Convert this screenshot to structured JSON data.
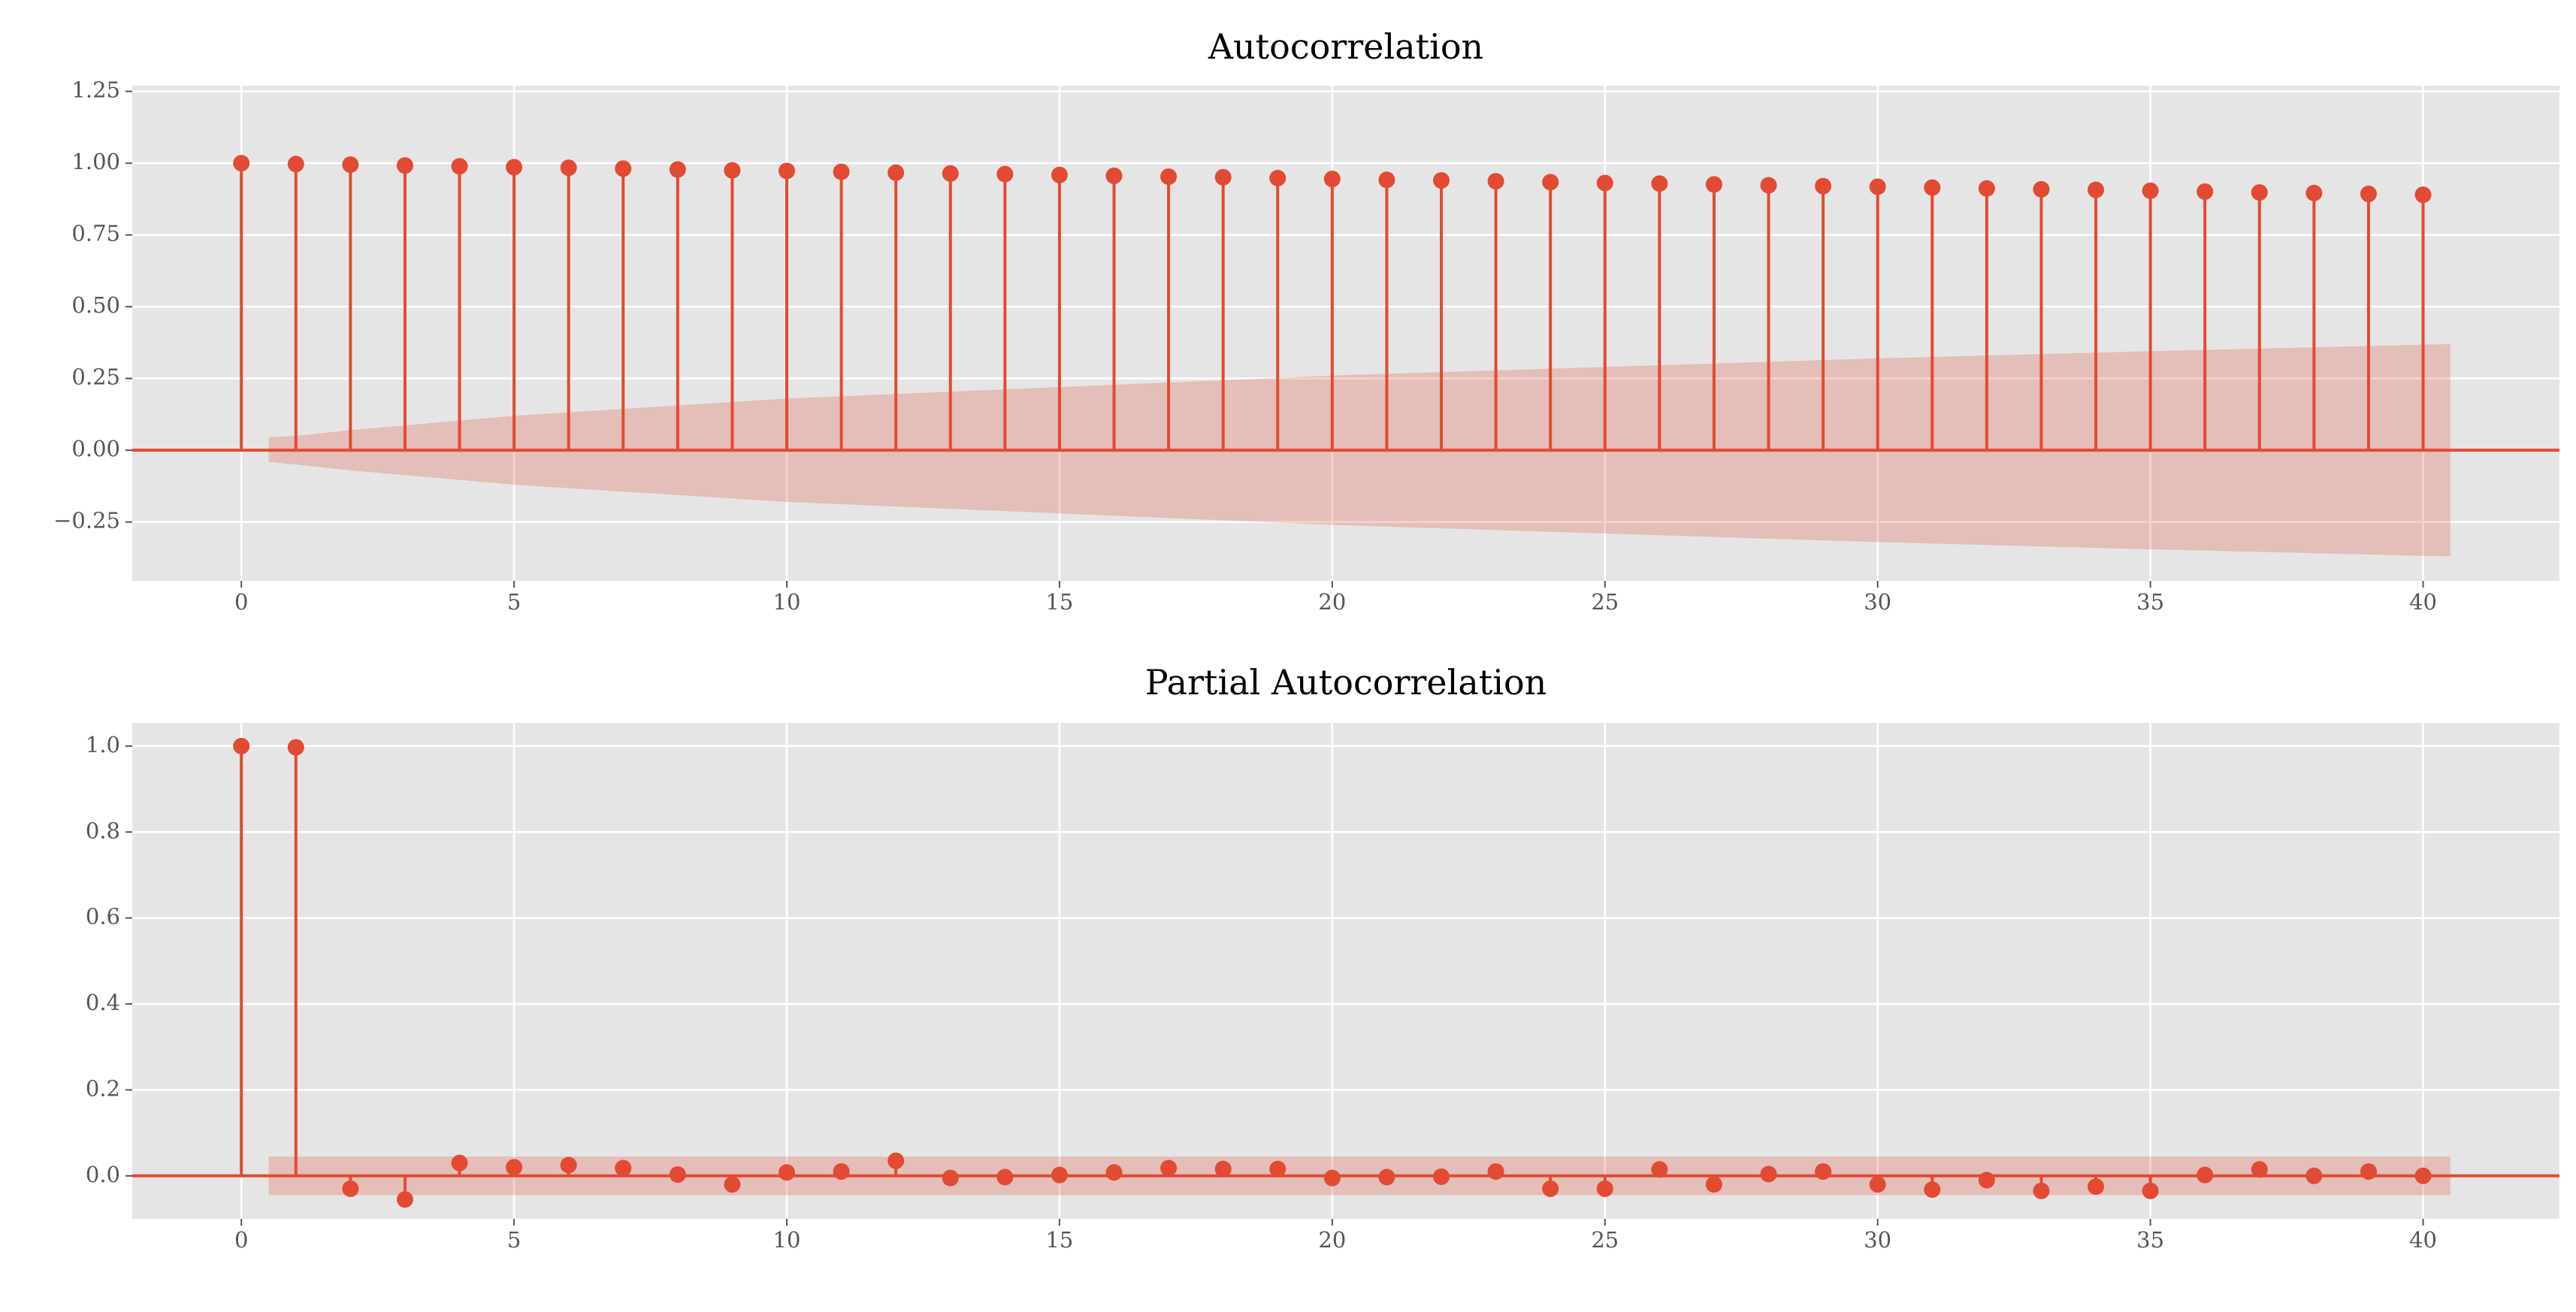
{
  "chart_data": [
    {
      "type": "stem",
      "title": "Autocorrelation",
      "color": "#E24A33",
      "band_color": "#E24A33",
      "grid": true,
      "x": [
        0,
        1,
        2,
        3,
        4,
        5,
        6,
        7,
        8,
        9,
        10,
        11,
        12,
        13,
        14,
        15,
        16,
        17,
        18,
        19,
        20,
        21,
        22,
        23,
        24,
        25,
        26,
        27,
        28,
        29,
        30,
        31,
        32,
        33,
        34,
        35,
        36,
        37,
        38,
        39,
        40
      ],
      "values": [
        1,
        0.997,
        0.995,
        0.992,
        0.989,
        0.986,
        0.984,
        0.981,
        0.978,
        0.975,
        0.973,
        0.97,
        0.967,
        0.964,
        0.962,
        0.959,
        0.956,
        0.953,
        0.951,
        0.948,
        0.945,
        0.942,
        0.94,
        0.937,
        0.934,
        0.931,
        0.929,
        0.926,
        0.923,
        0.92,
        0.918,
        0.915,
        0.912,
        0.909,
        0.907,
        0.904,
        0.901,
        0.898,
        0.896,
        0.893,
        0.89
      ],
      "band": {
        "x": [
          0.5,
          1,
          2,
          5,
          10,
          15,
          20,
          25,
          30,
          35,
          40.5
        ],
        "upper": [
          0.045,
          0.05,
          0.07,
          0.12,
          0.18,
          0.22,
          0.26,
          0.29,
          0.32,
          0.345,
          0.37
        ],
        "lower": [
          -0.04,
          -0.05,
          -0.07,
          -0.12,
          -0.18,
          -0.22,
          -0.26,
          -0.29,
          -0.32,
          -0.345,
          -0.37
        ]
      },
      "xlim": [
        -2,
        42.5
      ],
      "ylim": [
        -0.455,
        1.27
      ],
      "xticks": [
        0,
        5,
        10,
        15,
        20,
        25,
        30,
        35,
        40
      ],
      "yticks": [
        {
          "value": 1.25,
          "label": "1.25"
        },
        {
          "value": 1,
          "label": "1.00"
        },
        {
          "value": 0.75,
          "label": "0.75"
        },
        {
          "value": 0.5,
          "label": "0.50"
        },
        {
          "value": 0.25,
          "label": "0.25"
        },
        {
          "value": 0,
          "label": "0.00"
        },
        {
          "value": -0.25,
          "label": "−0.25"
        }
      ]
    },
    {
      "type": "stem",
      "title": "Partial Autocorrelation",
      "color": "#E24A33",
      "band_color": "#E24A33",
      "grid": true,
      "x": [
        0,
        1,
        2,
        3,
        4,
        5,
        6,
        7,
        8,
        9,
        10,
        11,
        12,
        13,
        14,
        15,
        16,
        17,
        18,
        19,
        20,
        21,
        22,
        23,
        24,
        25,
        26,
        27,
        28,
        29,
        30,
        31,
        32,
        33,
        34,
        35,
        36,
        37,
        38,
        39,
        40
      ],
      "values": [
        1,
        0.997,
        -0.03,
        -0.055,
        0.03,
        0.02,
        0.025,
        0.018,
        0.003,
        -0.02,
        0.008,
        0.01,
        0.035,
        -0.005,
        -0.003,
        0.002,
        0.008,
        0.018,
        0.016,
        0.016,
        -0.005,
        -0.003,
        -0.002,
        0.01,
        -0.03,
        -0.03,
        0.015,
        -0.02,
        0.004,
        0.01,
        -0.02,
        -0.032,
        -0.01,
        -0.035,
        -0.025,
        -0.035,
        0.002,
        0.015,
        0,
        0.01,
        0
      ],
      "band": {
        "x": [
          0.5,
          40.5
        ],
        "upper": [
          0.045,
          0.045
        ],
        "lower": [
          -0.045,
          -0.045
        ]
      },
      "xlim": [
        -2,
        42.5
      ],
      "ylim": [
        -0.1,
        1.054
      ],
      "xticks": [
        0,
        5,
        10,
        15,
        20,
        25,
        30,
        35,
        40
      ],
      "yticks": [
        {
          "value": 1,
          "label": "1.0"
        },
        {
          "value": 0.8,
          "label": "0.8"
        },
        {
          "value": 0.6,
          "label": "0.6"
        },
        {
          "value": 0.4,
          "label": "0.4"
        },
        {
          "value": 0.2,
          "label": "0.2"
        },
        {
          "value": 0,
          "label": "0.0"
        }
      ]
    }
  ]
}
